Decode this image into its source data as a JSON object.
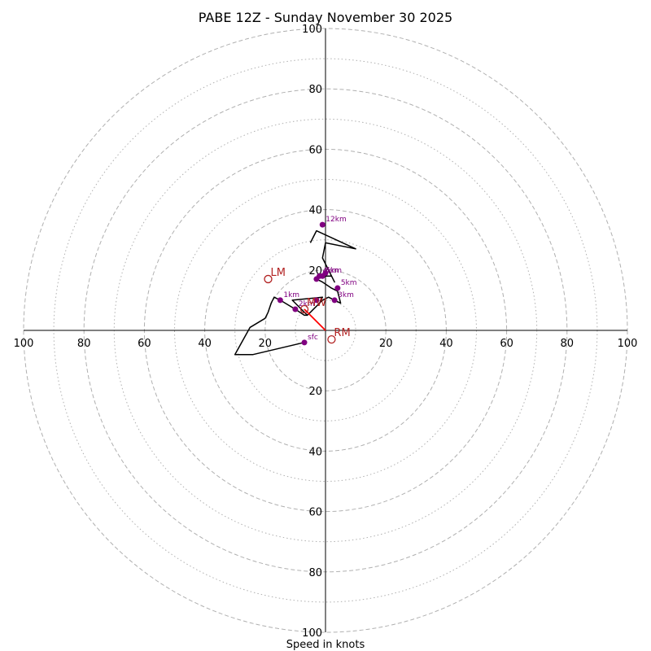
{
  "chart_data": {
    "type": "hodograph",
    "title": "PABE 12Z - Sunday November 30 2025",
    "xlabel": "Speed in knots",
    "range_knots": [
      -100,
      100
    ],
    "rings_major": [
      20,
      40,
      60,
      80,
      100
    ],
    "rings_minor": [
      10,
      30,
      50,
      70,
      90
    ],
    "tick_labels": [
      "20",
      "40",
      "60",
      "80",
      "100"
    ],
    "grid": true,
    "colors": {
      "trace": "#000000",
      "height_marker": "#800080",
      "storm_motion": "#b22222",
      "shear_vector": "#ff0000",
      "grid": "#b0b0b0"
    },
    "trace": [
      [
        -7,
        -4
      ],
      [
        -24,
        -8
      ],
      [
        -29,
        -8
      ],
      [
        -30,
        -8
      ],
      [
        -25,
        1
      ],
      [
        -20,
        4
      ],
      [
        -19,
        6
      ],
      [
        -18,
        9
      ],
      [
        -17,
        11
      ],
      [
        -15,
        10
      ],
      [
        -10,
        7
      ],
      [
        -7,
        5
      ],
      [
        -6,
        5
      ],
      [
        -3,
        8
      ],
      [
        -2,
        9
      ],
      [
        -1,
        11
      ],
      [
        -11,
        10
      ],
      [
        -8,
        7
      ],
      [
        -6,
        5
      ],
      [
        -4,
        7
      ],
      [
        -1,
        10
      ],
      [
        1,
        11
      ],
      [
        3,
        10
      ],
      [
        5,
        9
      ],
      [
        4,
        13
      ],
      [
        2,
        14
      ],
      [
        -1,
        16
      ],
      [
        -3,
        17
      ],
      [
        -1,
        18
      ],
      [
        2,
        18
      ],
      [
        3,
        16
      ],
      [
        -1,
        24
      ],
      [
        0,
        29
      ],
      [
        10,
        27
      ],
      [
        -3,
        33
      ],
      [
        -5,
        29
      ]
    ],
    "height_markers": [
      {
        "label": "sfc",
        "u": -7,
        "v": -4
      },
      {
        "label": "1km",
        "u": -15,
        "v": 10
      },
      {
        "label": "2km",
        "u": -10,
        "v": 7
      },
      {
        "label": "3km",
        "u": 3,
        "v": 10
      },
      {
        "label": "4km",
        "u": -2,
        "v": 18
      },
      {
        "label": "5km",
        "u": 4,
        "v": 14
      },
      {
        "label": "6km",
        "u": -1,
        "v": 18
      },
      {
        "label": "",
        "u": -3,
        "v": 17
      },
      {
        "label": "",
        "u": 0,
        "v": 19
      },
      {
        "label": "",
        "u": -3,
        "v": 10
      },
      {
        "label": "12km",
        "u": -1,
        "v": 35
      }
    ],
    "storm_motion": [
      {
        "label": "LM",
        "u": -19,
        "v": 17
      },
      {
        "label": "MW",
        "u": -7,
        "v": 7
      },
      {
        "label": "RM",
        "u": 2,
        "v": -3
      }
    ],
    "shear_vector": {
      "from": [
        0,
        0
      ],
      "to": [
        -7,
        7
      ]
    }
  }
}
